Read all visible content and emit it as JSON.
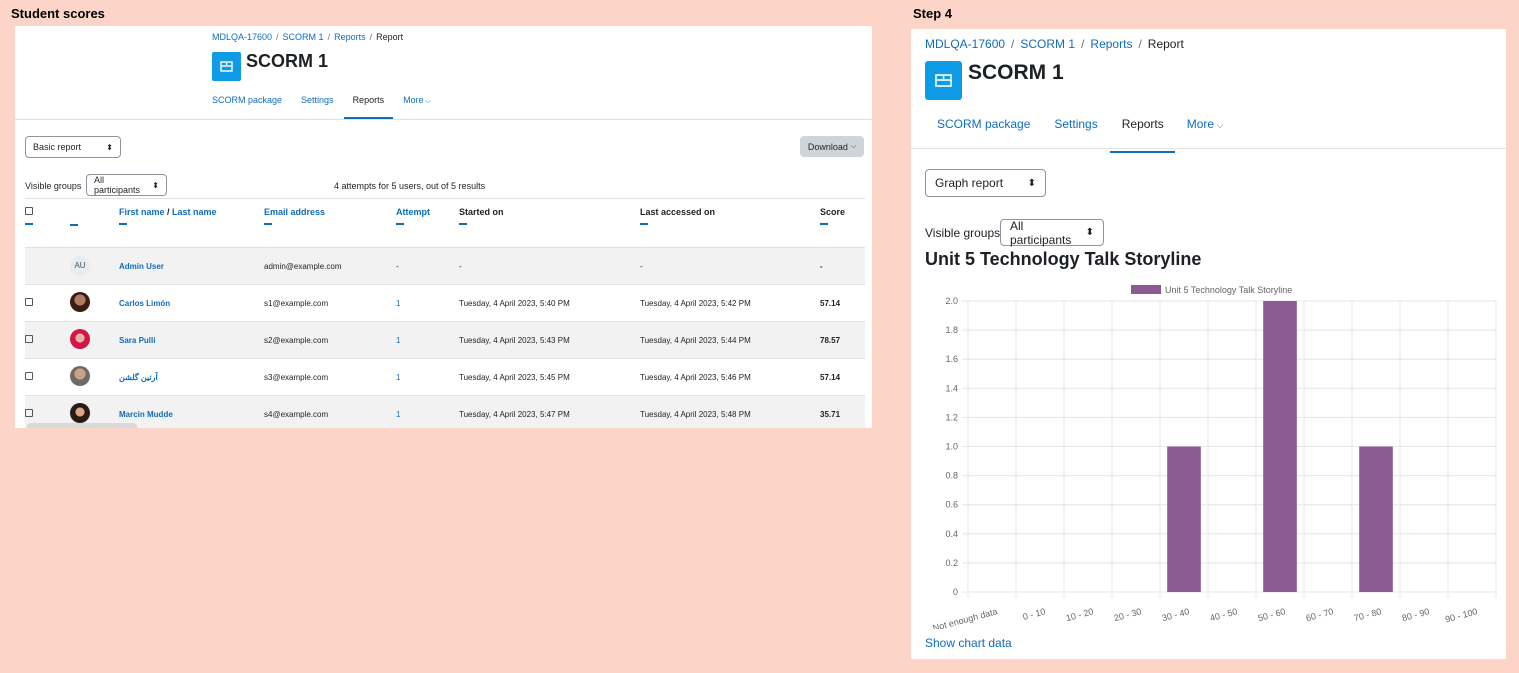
{
  "captions": {
    "left": "Student scores",
    "right": "Step 4"
  },
  "left": {
    "breadcrumb": [
      "MDLQA-17600",
      "SCORM 1",
      "Reports",
      "Report"
    ],
    "title": "SCORM 1",
    "tabs": [
      "SCORM package",
      "Settings",
      "Reports",
      "More"
    ],
    "report_select": "Basic report",
    "download_label": "Download",
    "visible_groups_label": "Visible groups",
    "groups_select": "All participants",
    "attempts_text": "4 attempts for 5 users, out of 5 results",
    "columns": {
      "first_name": "First name",
      "slash": " / ",
      "last_name": "Last name",
      "email": "Email address",
      "attempt": "Attempt",
      "started": "Started on",
      "last_accessed": "Last accessed on",
      "score": "Score"
    },
    "rows": [
      {
        "initials": "AU",
        "name": "Admin User",
        "email": "admin@example.com",
        "attempt": "-",
        "started": "-",
        "last": "-",
        "score": "-"
      },
      {
        "name": "Carlos Limón",
        "email": "s1@example.com",
        "attempt": "1",
        "started": "Tuesday, 4 April 2023, 5:40 PM",
        "last": "Tuesday, 4 April 2023, 5:42 PM",
        "score": "57.14"
      },
      {
        "name": "Sara Pulli",
        "email": "s2@example.com",
        "attempt": "1",
        "started": "Tuesday, 4 April 2023, 5:43 PM",
        "last": "Tuesday, 4 April 2023, 5:44 PM",
        "score": "78.57"
      },
      {
        "name": "آرتین گلشن",
        "email": "s3@example.com",
        "attempt": "1",
        "started": "Tuesday, 4 April 2023, 5:45 PM",
        "last": "Tuesday, 4 April 2023, 5:46 PM",
        "score": "57.14"
      },
      {
        "name": "Marcin Mudde",
        "email": "s4@example.com",
        "attempt": "1",
        "started": "Tuesday, 4 April 2023, 5:47 PM",
        "last": "Tuesday, 4 April 2023, 5:48 PM",
        "score": "35.71"
      }
    ]
  },
  "right": {
    "breadcrumb": [
      "MDLQA-17600",
      "SCORM 1",
      "Reports",
      "Report"
    ],
    "title": "SCORM 1",
    "tabs": [
      "SCORM package",
      "Settings",
      "Reports",
      "More"
    ],
    "report_select": "Graph report",
    "visible_groups_label": "Visible groups",
    "groups_select": "All participants",
    "show_chart_data": "Show chart data"
  },
  "chart_data": {
    "type": "bar",
    "title": "Unit 5 Technology Talk Storyline",
    "legend_position": "top",
    "grid": true,
    "categories": [
      "Not enough data",
      "0 - 10",
      "10 - 20",
      "20 - 30",
      "30 - 40",
      "40 - 50",
      "50 - 60",
      "60 - 70",
      "70 - 80",
      "80 - 90",
      "90 - 100"
    ],
    "series": [
      {
        "name": "Unit 5 Technology Talk Storyline",
        "values": [
          0,
          0,
          0,
          0,
          1,
          0,
          2,
          0,
          1,
          0,
          0
        ]
      }
    ],
    "ylim": [
      0,
      2
    ],
    "yticks": [
      "0",
      "0.2",
      "0.4",
      "0.6",
      "0.8",
      "1.0",
      "1.2",
      "1.4",
      "1.6",
      "1.8",
      "2.0"
    ],
    "bar_color": "#8b5a92"
  }
}
